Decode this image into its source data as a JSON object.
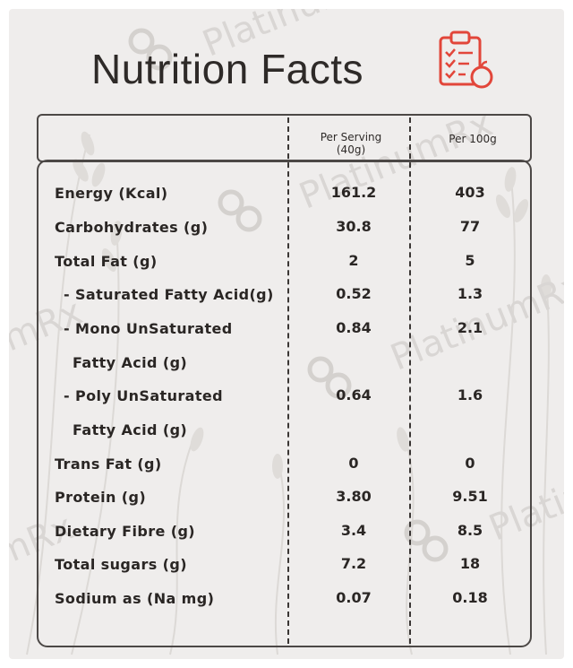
{
  "title": "Nutrition Facts",
  "watermark": "PlatinumRx",
  "columns": {
    "per_serving": "Per Serving (40g)",
    "per_100g": "Per 100g"
  },
  "rows": [
    {
      "label": "Energy (Kcal)",
      "per_serving": "161.2",
      "per_100g": "403"
    },
    {
      "label": "Carbohydrates (g)",
      "per_serving": "30.8",
      "per_100g": "77"
    },
    {
      "label": "Total Fat (g)",
      "per_serving": "2",
      "per_100g": "5"
    },
    {
      "label": "- Saturated Fatty Acid(g)",
      "per_serving": "0.52",
      "per_100g": "1.3"
    },
    {
      "label": "- Mono UnSaturated",
      "label_cont": "Fatty Acid (g)",
      "per_serving": "0.84",
      "per_100g": "2.1"
    },
    {
      "label": "- Poly UnSaturated",
      "label_cont": "Fatty Acid (g)",
      "per_serving": "0.64",
      "per_100g": "1.6"
    },
    {
      "label": "Trans Fat (g)",
      "per_serving": "0",
      "per_100g": "0"
    },
    {
      "label": "Protein (g)",
      "per_serving": "3.80",
      "per_100g": "9.51"
    },
    {
      "label": "Dietary Fibre (g)",
      "per_serving": "3.4",
      "per_100g": "8.5"
    },
    {
      "label": "Total sugars (g)",
      "per_serving": "7.2",
      "per_100g": "18"
    },
    {
      "label": "Sodium as (Na mg)",
      "per_serving": "0.07",
      "per_100g": "0.18"
    }
  ],
  "colors": {
    "text": "#2a2624",
    "background": "#efedec",
    "icon_accent": "#e2463a"
  }
}
